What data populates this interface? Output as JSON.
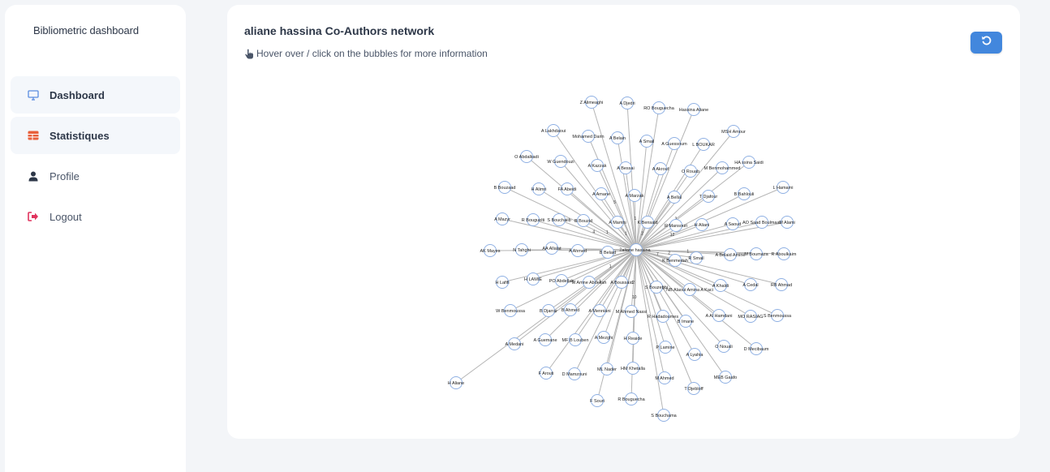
{
  "sidebar": {
    "brand": "Bibliometric dashboard",
    "items": [
      {
        "label": "Dashboard",
        "icon": "monitor-icon"
      },
      {
        "label": "Statistiques",
        "icon": "table-icon"
      },
      {
        "label": "Profile",
        "icon": "user-icon"
      },
      {
        "label": "Logout",
        "icon": "logout-icon"
      }
    ]
  },
  "colors": {
    "accent": "#4287dd",
    "dashboard_icon": "#5a8de0",
    "statistiques_icon": "#e8603c",
    "profile_icon": "#2d3748",
    "logout_icon": "#e0335d",
    "node_stroke": "#8fb0e3",
    "edge": "#b5b5b5"
  },
  "main": {
    "title": "aliane hassina Co-Authors network",
    "hint": "Hover over / click on the bubbles for more information",
    "hint_icon": "pointing-hand-icon",
    "reset_icon": "reset-icon"
  },
  "network": {
    "center": {
      "label": "aliane hassina"
    },
    "nodes": [
      {
        "label": "Z Alimeaghi",
        "weight": ""
      },
      {
        "label": "A Djedri",
        "weight": ""
      },
      {
        "label": "RO Bouguecha",
        "weight": ""
      },
      {
        "label": "Hassina Aliane",
        "weight": ""
      },
      {
        "label": "A Lakhdaoui",
        "weight": ""
      },
      {
        "label": "Mohamed Darin",
        "weight": ""
      },
      {
        "label": "A Belain",
        "weight": ""
      },
      {
        "label": "A Smail",
        "weight": ""
      },
      {
        "label": "A Guessoum",
        "weight": ""
      },
      {
        "label": "L BOUKAR",
        "weight": ""
      },
      {
        "label": "MSH Amour",
        "weight": ""
      },
      {
        "label": "O Abdalkadi",
        "weight": ""
      },
      {
        "label": "W Guendouzi",
        "weight": ""
      },
      {
        "label": "A Kazzak",
        "weight": "5"
      },
      {
        "label": "A Bessai",
        "weight": ""
      },
      {
        "label": "A Akrouf",
        "weight": ""
      },
      {
        "label": "O Rouab",
        "weight": ""
      },
      {
        "label": "M Benmohammed",
        "weight": ""
      },
      {
        "label": "HA ssina Saidi",
        "weight": ""
      },
      {
        "label": "B Bouzaad",
        "weight": ""
      },
      {
        "label": "H Alimri",
        "weight": ""
      },
      {
        "label": "FA Abeidi",
        "weight": ""
      },
      {
        "label": "A Amane",
        "weight": "3"
      },
      {
        "label": "A Marzak",
        "weight": "1"
      },
      {
        "label": "A Bellal",
        "weight": ""
      },
      {
        "label": "T Djafour",
        "weight": "2"
      },
      {
        "label": "B Bahlouli",
        "weight": ""
      },
      {
        "label": "L Hamami",
        "weight": ""
      },
      {
        "label": "A Mazyr",
        "weight": ""
      },
      {
        "label": "R Bouguelti",
        "weight": ""
      },
      {
        "label": "S Bouchaiib",
        "weight": "4"
      },
      {
        "label": "B Bouzid",
        "weight": "1"
      },
      {
        "label": "A Mamhi",
        "weight": "1"
      },
      {
        "label": "K Bensaid",
        "weight": "2"
      },
      {
        "label": "R Mansouri",
        "weight": ""
      },
      {
        "label": "H Aliani",
        "weight": "12"
      },
      {
        "label": "A Saoud",
        "weight": ""
      },
      {
        "label": "AO Saad Boulmaali",
        "weight": ""
      },
      {
        "label": "M Alami",
        "weight": ""
      },
      {
        "label": "AK Mayes",
        "weight": ""
      },
      {
        "label": "N Tahghi",
        "weight": ""
      },
      {
        "label": "AA Allalat",
        "weight": ""
      },
      {
        "label": "A Ahmed",
        "weight": "1"
      },
      {
        "label": "B Belaid",
        "weight": "2"
      },
      {
        "label": "K Benmedah",
        "weight": "7"
      },
      {
        "label": "R Smail",
        "weight": "2"
      },
      {
        "label": "A Belaid Amine",
        "weight": "1"
      },
      {
        "label": "M Boumaza",
        "weight": ""
      },
      {
        "label": "R Aboulkaim",
        "weight": ""
      },
      {
        "label": "H Lafifi",
        "weight": ""
      },
      {
        "label": "H LAMIE",
        "weight": ""
      },
      {
        "label": "PO Abdellah",
        "weight": ""
      },
      {
        "label": "M Amne Abdellah",
        "weight": "1"
      },
      {
        "label": "A Boussaid",
        "weight": ""
      },
      {
        "label": "S Bouzebbi",
        "weight": ""
      },
      {
        "label": "NB Alaoui Amina A Kaci",
        "weight": ""
      },
      {
        "label": "A Khaldi",
        "weight": ""
      },
      {
        "label": "A Cedal",
        "weight": ""
      },
      {
        "label": "RB Ahmad",
        "weight": ""
      },
      {
        "label": "W Benmoussa",
        "weight": "5"
      },
      {
        "label": "B Djarrar",
        "weight": ""
      },
      {
        "label": "B Ahmed",
        "weight": "1"
      },
      {
        "label": "A Menniani",
        "weight": ""
      },
      {
        "label": "M Ahmed Nassi",
        "weight": "2"
      },
      {
        "label": "R Hadadoumes",
        "weight": "4"
      },
      {
        "label": "B Imane",
        "weight": "1"
      },
      {
        "label": "A Al Hamdani",
        "weight": ""
      },
      {
        "label": "MO RASIAG",
        "weight": ""
      },
      {
        "label": "S Benmoussa",
        "weight": ""
      },
      {
        "label": "A Medani",
        "weight": ""
      },
      {
        "label": "A Guemane",
        "weight": ""
      },
      {
        "label": "MF B Louben",
        "weight": ""
      },
      {
        "label": "A Mezghi",
        "weight": ""
      },
      {
        "label": "H Reaide",
        "weight": "10"
      },
      {
        "label": "P Lamine",
        "weight": ""
      },
      {
        "label": "A Lyahia",
        "weight": ""
      },
      {
        "label": "O Nouali",
        "weight": ""
      },
      {
        "label": "D Mecibaum",
        "weight": ""
      },
      {
        "label": "H Aliane",
        "weight": ""
      },
      {
        "label": "F Arouti",
        "weight": ""
      },
      {
        "label": "D Mamzouni",
        "weight": ""
      },
      {
        "label": "ML Nader",
        "weight": ""
      },
      {
        "label": "HM Khetalla",
        "weight": ""
      },
      {
        "label": "M Ahmed",
        "weight": ""
      },
      {
        "label": "T Djebloff",
        "weight": ""
      },
      {
        "label": "MEB Gaafo",
        "weight": ""
      },
      {
        "label": "F Souri",
        "weight": ""
      },
      {
        "label": "R Bouguecha",
        "weight": ""
      },
      {
        "label": "S Bouchama",
        "weight": ""
      }
    ]
  }
}
